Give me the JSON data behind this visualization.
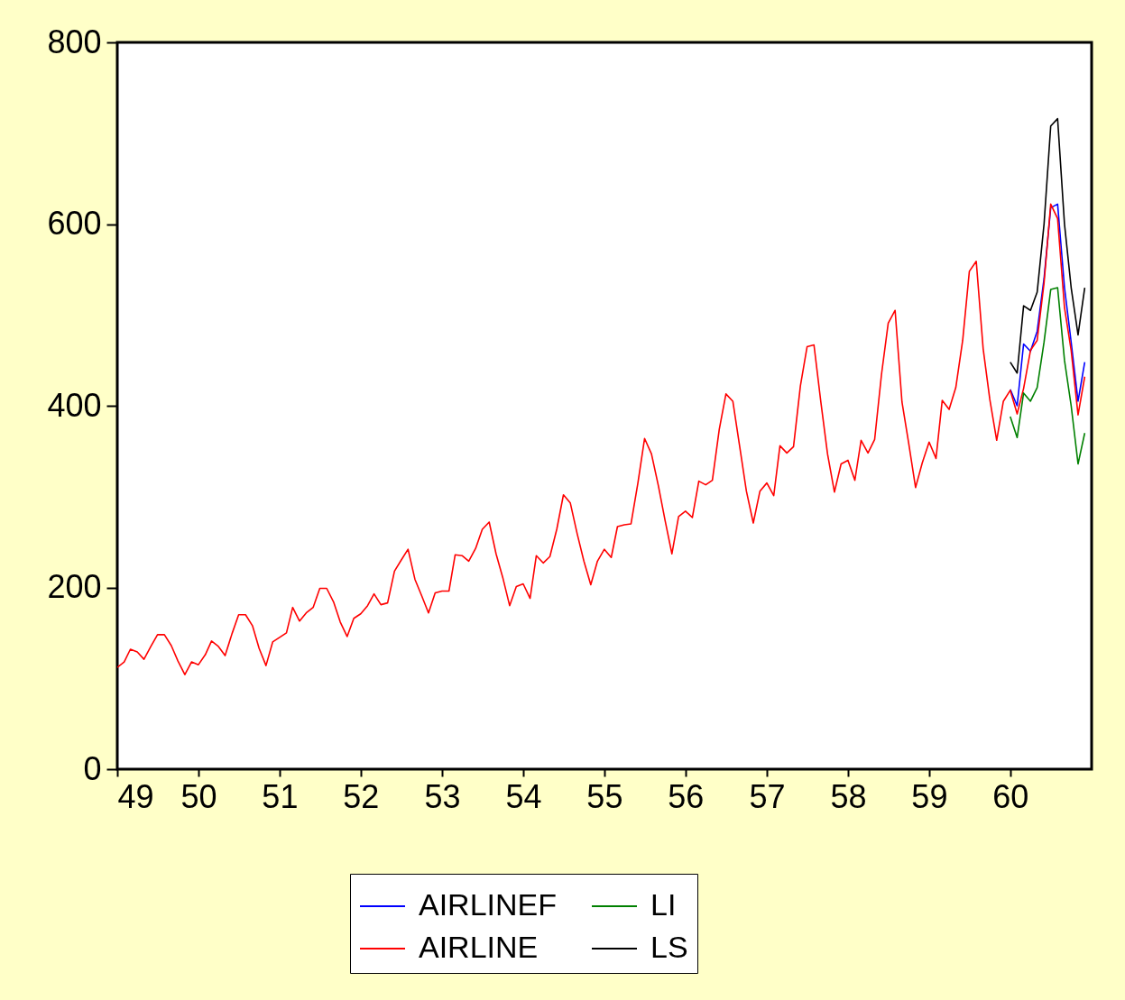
{
  "chart_data": {
    "type": "line",
    "x": [
      "1949-01",
      "1949-02",
      "1949-03",
      "1949-04",
      "1949-05",
      "1949-06",
      "1949-07",
      "1949-08",
      "1949-09",
      "1949-10",
      "1949-11",
      "1949-12",
      "1950-01",
      "1950-02",
      "1950-03",
      "1950-04",
      "1950-05",
      "1950-06",
      "1950-07",
      "1950-08",
      "1950-09",
      "1950-10",
      "1950-11",
      "1950-12",
      "1951-01",
      "1951-02",
      "1951-03",
      "1951-04",
      "1951-05",
      "1951-06",
      "1951-07",
      "1951-08",
      "1951-09",
      "1951-10",
      "1951-11",
      "1951-12",
      "1952-01",
      "1952-02",
      "1952-03",
      "1952-04",
      "1952-05",
      "1952-06",
      "1952-07",
      "1952-08",
      "1952-09",
      "1952-10",
      "1952-11",
      "1952-12",
      "1953-01",
      "1953-02",
      "1953-03",
      "1953-04",
      "1953-05",
      "1953-06",
      "1953-07",
      "1953-08",
      "1953-09",
      "1953-10",
      "1953-11",
      "1953-12",
      "1954-01",
      "1954-02",
      "1954-03",
      "1954-04",
      "1954-05",
      "1954-06",
      "1954-07",
      "1954-08",
      "1954-09",
      "1954-10",
      "1954-11",
      "1954-12",
      "1955-01",
      "1955-02",
      "1955-03",
      "1955-04",
      "1955-05",
      "1955-06",
      "1955-07",
      "1955-08",
      "1955-09",
      "1955-10",
      "1955-11",
      "1955-12",
      "1956-01",
      "1956-02",
      "1956-03",
      "1956-04",
      "1956-05",
      "1956-06",
      "1956-07",
      "1956-08",
      "1956-09",
      "1956-10",
      "1956-11",
      "1956-12",
      "1957-01",
      "1957-02",
      "1957-03",
      "1957-04",
      "1957-05",
      "1957-06",
      "1957-07",
      "1957-08",
      "1957-09",
      "1957-10",
      "1957-11",
      "1957-12",
      "1958-01",
      "1958-02",
      "1958-03",
      "1958-04",
      "1958-05",
      "1958-06",
      "1958-07",
      "1958-08",
      "1958-09",
      "1958-10",
      "1958-11",
      "1958-12",
      "1959-01",
      "1959-02",
      "1959-03",
      "1959-04",
      "1959-05",
      "1959-06",
      "1959-07",
      "1959-08",
      "1959-09",
      "1959-10",
      "1959-11",
      "1959-12",
      "1960-01",
      "1960-02",
      "1960-03",
      "1960-04",
      "1960-05",
      "1960-06",
      "1960-07",
      "1960-08",
      "1960-09",
      "1960-10",
      "1960-11",
      "1960-12"
    ],
    "series": [
      {
        "name": "AIRLINEF",
        "color": "#0000ff",
        "x": [
          "1960-01",
          "1960-02",
          "1960-03",
          "1960-04",
          "1960-05",
          "1960-06",
          "1960-07",
          "1960-08",
          "1960-09",
          "1960-10",
          "1960-11",
          "1960-12"
        ],
        "values": [
          418,
          400,
          468,
          460,
          482,
          540,
          618,
          622,
          530,
          470,
          405,
          448
        ]
      },
      {
        "name": "AIRLINE",
        "color": "#ff0000",
        "values": [
          112,
          118,
          132,
          129,
          121,
          135,
          148,
          148,
          136,
          119,
          104,
          118,
          115,
          126,
          141,
          135,
          125,
          149,
          170,
          170,
          158,
          133,
          114,
          140,
          145,
          150,
          178,
          163,
          172,
          178,
          199,
          199,
          184,
          162,
          146,
          166,
          171,
          180,
          193,
          181,
          183,
          218,
          230,
          242,
          209,
          191,
          172,
          194,
          196,
          196,
          236,
          235,
          229,
          243,
          264,
          272,
          237,
          211,
          180,
          201,
          204,
          188,
          235,
          227,
          234,
          264,
          302,
          293,
          259,
          229,
          203,
          229,
          242,
          233,
          267,
          269,
          270,
          315,
          364,
          347,
          312,
          274,
          237,
          278,
          284,
          277,
          317,
          313,
          318,
          374,
          413,
          405,
          355,
          306,
          271,
          306,
          315,
          301,
          356,
          348,
          355,
          422,
          465,
          467,
          404,
          347,
          305,
          336,
          340,
          318,
          362,
          348,
          363,
          435,
          491,
          505,
          404,
          359,
          310,
          337,
          360,
          342,
          406,
          396,
          420,
          472,
          548,
          559,
          463,
          407,
          362,
          405,
          417,
          391,
          419,
          461,
          472,
          535,
          622,
          606,
          508,
          461,
          390,
          432
        ]
      },
      {
        "name": "LI",
        "color": "#008000",
        "x": [
          "1960-01",
          "1960-02",
          "1960-03",
          "1960-04",
          "1960-05",
          "1960-06",
          "1960-07",
          "1960-08",
          "1960-09",
          "1960-10",
          "1960-11",
          "1960-12"
        ],
        "values": [
          388,
          365,
          414,
          405,
          420,
          470,
          528,
          530,
          450,
          400,
          336,
          370
        ]
      },
      {
        "name": "LS",
        "color": "#000000",
        "x": [
          "1960-01",
          "1960-02",
          "1960-03",
          "1960-04",
          "1960-05",
          "1960-06",
          "1960-07",
          "1960-08",
          "1960-09",
          "1960-10",
          "1960-11",
          "1960-12"
        ],
        "values": [
          448,
          436,
          510,
          505,
          525,
          600,
          708,
          716,
          600,
          530,
          478,
          530
        ]
      }
    ],
    "xlim": [
      "1949-01",
      "1961-01"
    ],
    "xticks": [
      {
        "value": "1949",
        "label": "49"
      },
      {
        "value": "1950",
        "label": "50"
      },
      {
        "value": "1951",
        "label": "51"
      },
      {
        "value": "1952",
        "label": "52"
      },
      {
        "value": "1953",
        "label": "53"
      },
      {
        "value": "1954",
        "label": "54"
      },
      {
        "value": "1955",
        "label": "55"
      },
      {
        "value": "1956",
        "label": "56"
      },
      {
        "value": "1957",
        "label": "57"
      },
      {
        "value": "1958",
        "label": "58"
      },
      {
        "value": "1959",
        "label": "59"
      },
      {
        "value": "1960",
        "label": "60"
      }
    ],
    "ylim": [
      0,
      800
    ],
    "yticks": [
      0,
      200,
      400,
      600,
      800
    ],
    "grid": false,
    "legend": "bottom"
  }
}
